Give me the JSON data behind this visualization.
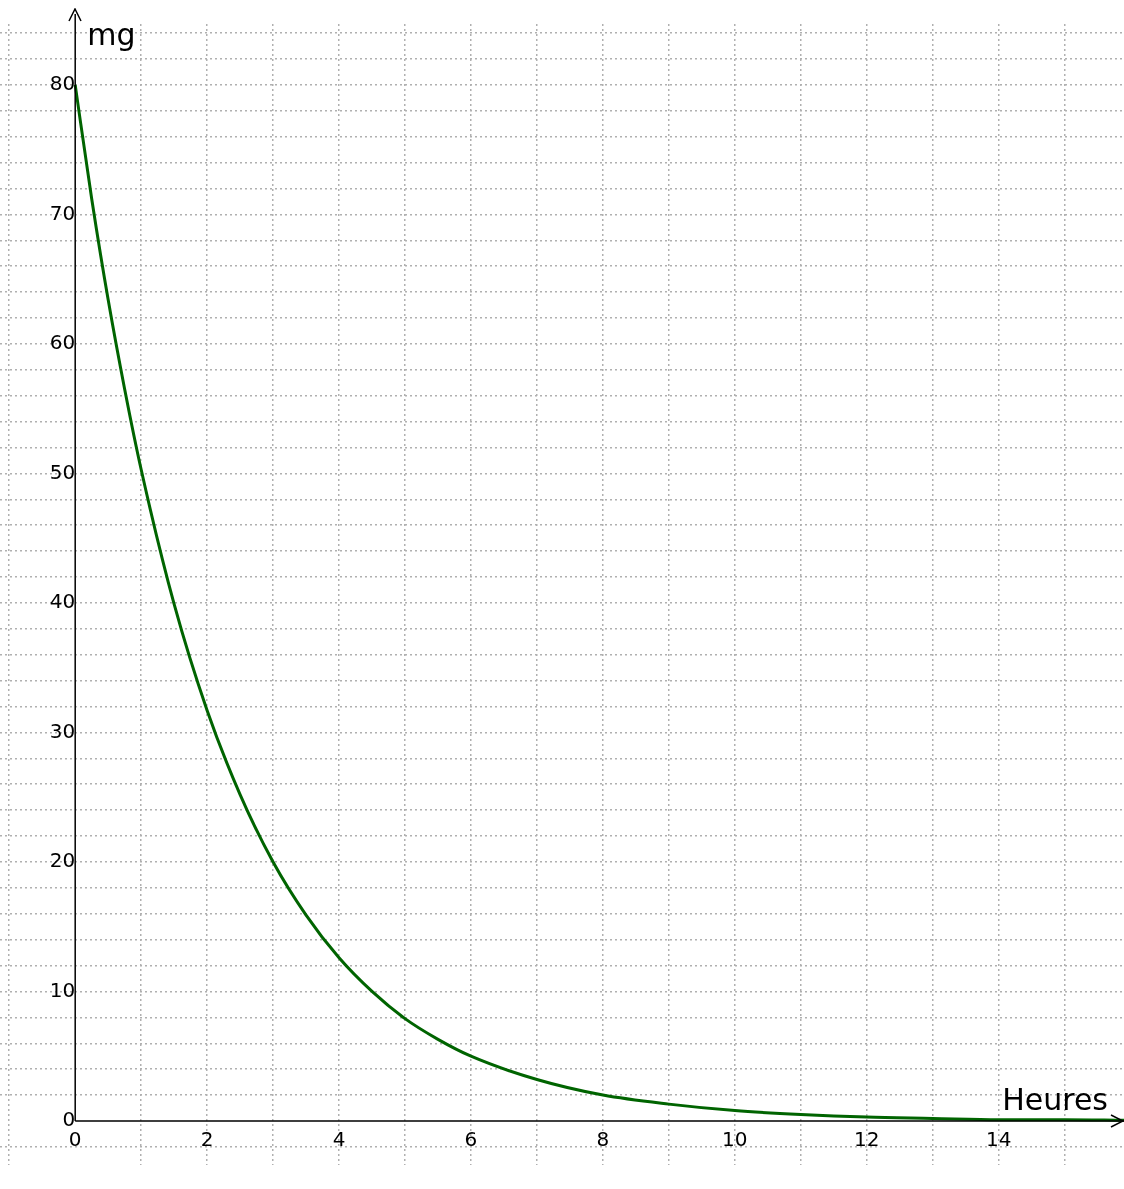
{
  "chart_data": {
    "type": "line",
    "xlabel": "Heures",
    "ylabel": "mg",
    "x": [
      0,
      0.25,
      0.5,
      0.75,
      1,
      1.5,
      2,
      2.5,
      3,
      3.5,
      4,
      4.5,
      5,
      5.5,
      6,
      7,
      8,
      9,
      10,
      11,
      12,
      13,
      14,
      15,
      15.9
    ],
    "series": [
      {
        "color": "#006400",
        "values": [
          80,
          71.2,
          63.4,
          56.5,
          50.3,
          39.9,
          31.7,
          25.2,
          20,
          15.9,
          12.6,
          10,
          7.9,
          6.3,
          5,
          3.2,
          2,
          1.3,
          0.8,
          0.5,
          0.3,
          0.2,
          0.1,
          0.1,
          0.05
        ]
      }
    ],
    "xlim": [
      -1.14,
      15.9
    ],
    "ylim": [
      -3.4,
      84.7
    ],
    "xticks": [
      {
        "value": -1,
        "label": null
      },
      0,
      {
        "value": 1,
        "label": null
      },
      2,
      {
        "value": 3,
        "label": null
      },
      4,
      {
        "value": 5,
        "label": null
      },
      6,
      {
        "value": 7,
        "label": null
      },
      8,
      {
        "value": 9,
        "label": null
      },
      10,
      {
        "value": 11,
        "label": null
      },
      12,
      {
        "value": 13,
        "label": null
      },
      14,
      {
        "value": 15,
        "label": null
      }
    ],
    "yticks": [
      {
        "value": -2,
        "label": null
      },
      0,
      {
        "value": 2,
        "label": null
      },
      {
        "value": 4,
        "label": null
      },
      {
        "value": 6,
        "label": null
      },
      {
        "value": 8,
        "label": null
      },
      10,
      {
        "value": 12,
        "label": null
      },
      {
        "value": 14,
        "label": null
      },
      {
        "value": 16,
        "label": null
      },
      {
        "value": 18,
        "label": null
      },
      20,
      {
        "value": 22,
        "label": null
      },
      {
        "value": 24,
        "label": null
      },
      {
        "value": 26,
        "label": null
      },
      {
        "value": 28,
        "label": null
      },
      30,
      {
        "value": 32,
        "label": null
      },
      {
        "value": 34,
        "label": null
      },
      {
        "value": 36,
        "label": null
      },
      {
        "value": 38,
        "label": null
      },
      40,
      {
        "value": 42,
        "label": null
      },
      {
        "value": 44,
        "label": null
      },
      {
        "value": 46,
        "label": null
      },
      {
        "value": 48,
        "label": null
      },
      50,
      {
        "value": 52,
        "label": null
      },
      {
        "value": 54,
        "label": null
      },
      {
        "value": 56,
        "label": null
      },
      {
        "value": 58,
        "label": null
      },
      60,
      {
        "value": 62,
        "label": null
      },
      {
        "value": 64,
        "label": null
      },
      {
        "value": 66,
        "label": null
      },
      {
        "value": 68,
        "label": null
      },
      70,
      {
        "value": 72,
        "label": null
      },
      {
        "value": 74,
        "label": null
      },
      {
        "value": 76,
        "label": null
      },
      {
        "value": 78,
        "label": null
      },
      80,
      {
        "value": 82,
        "label": null
      },
      {
        "value": 84,
        "label": null
      }
    ],
    "grid": true,
    "marker": "none",
    "line_style": "solid",
    "legend": false
  }
}
